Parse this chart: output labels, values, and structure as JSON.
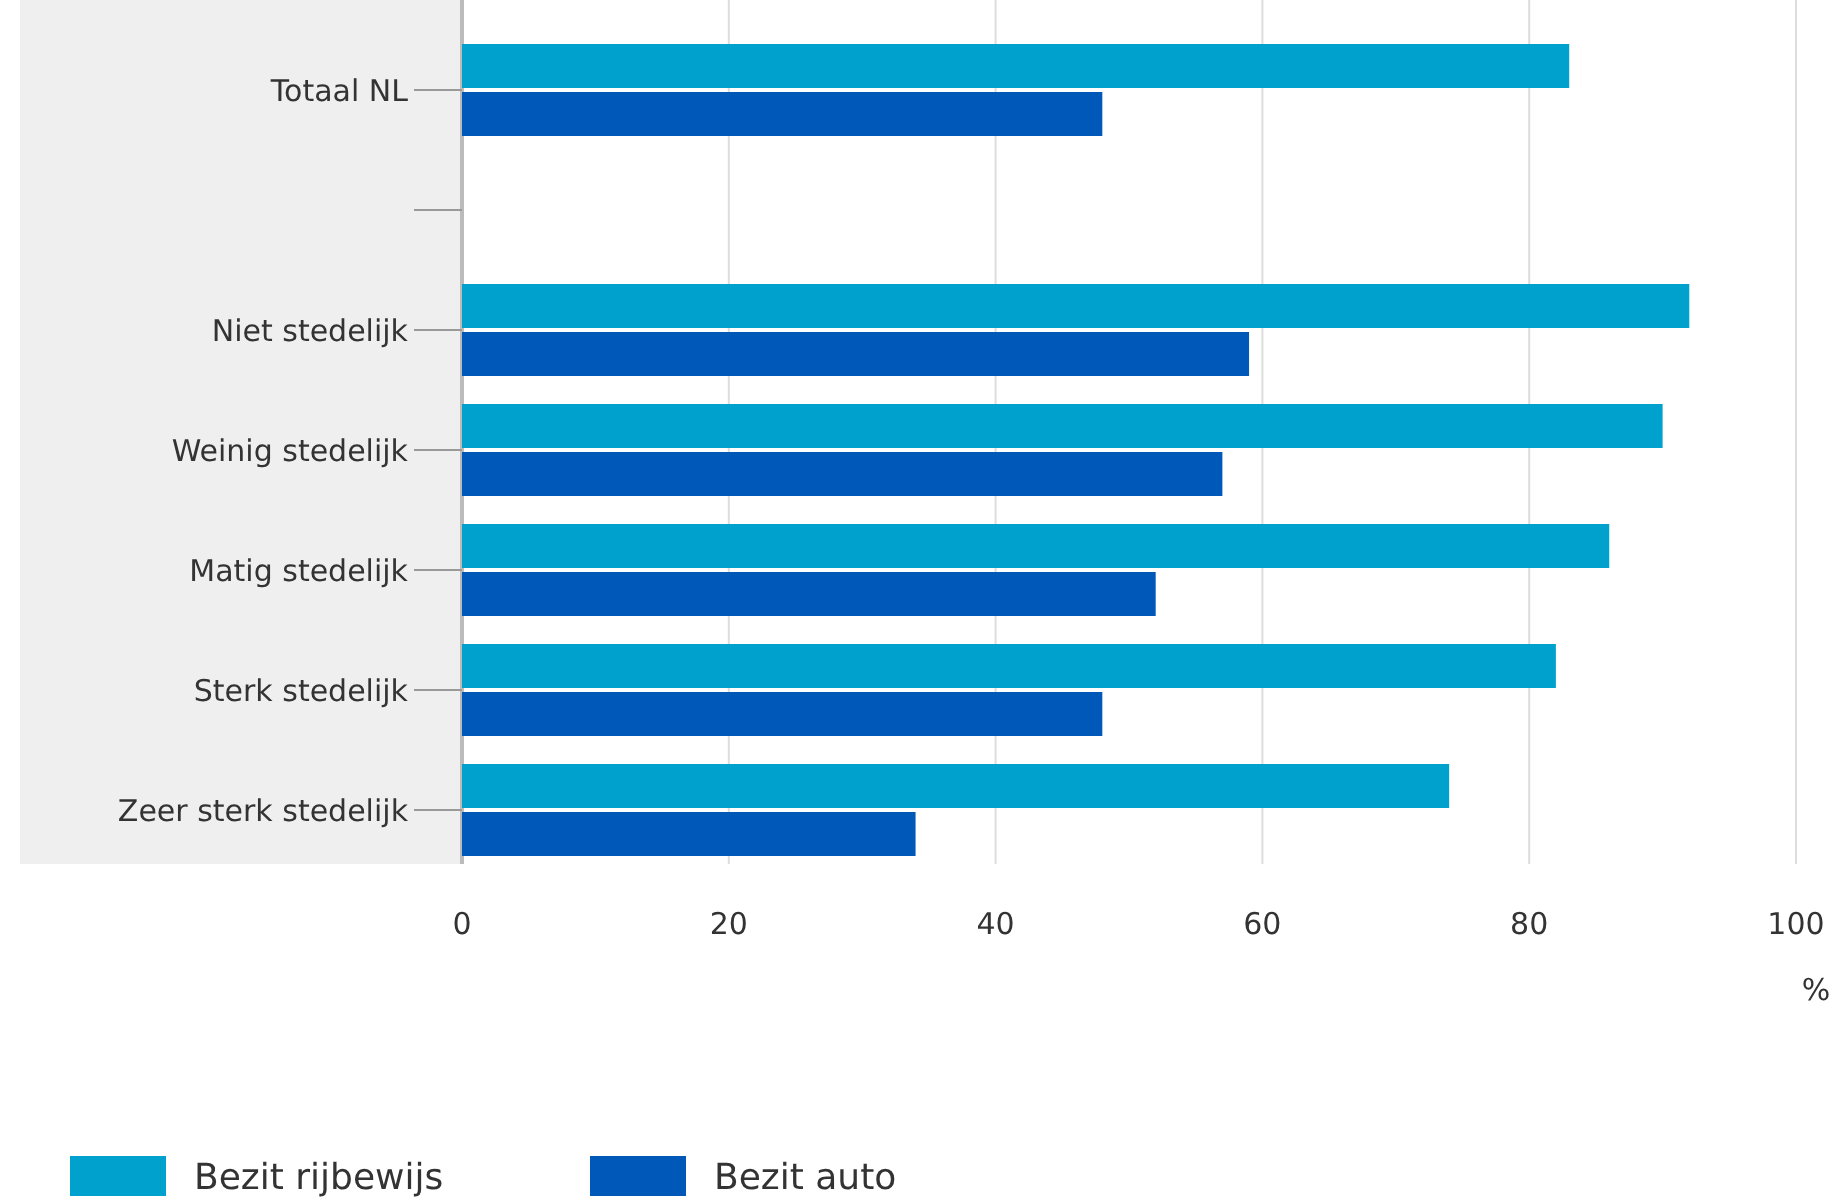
{
  "chart_data": {
    "type": "bar",
    "orientation": "horizontal",
    "categories": [
      "Totaal NL",
      null,
      "Niet stedelijk",
      "Weinig stedelijk",
      "Matig stedelijk",
      "Sterk stedelijk",
      "Zeer sterk stedelijk"
    ],
    "series": [
      {
        "name": "Bezit rijbewijs",
        "color": "#00a1cd",
        "values": [
          83,
          null,
          92,
          90,
          86,
          82,
          74
        ]
      },
      {
        "name": "Bezit auto",
        "color": "#0058b8",
        "values": [
          48,
          null,
          59,
          57,
          52,
          48,
          34
        ]
      }
    ],
    "xlabel": "%",
    "xlim": [
      0,
      100
    ],
    "xticks": [
      0,
      20,
      40,
      60,
      80,
      100
    ],
    "grid": "x",
    "legend": "bottom left"
  }
}
